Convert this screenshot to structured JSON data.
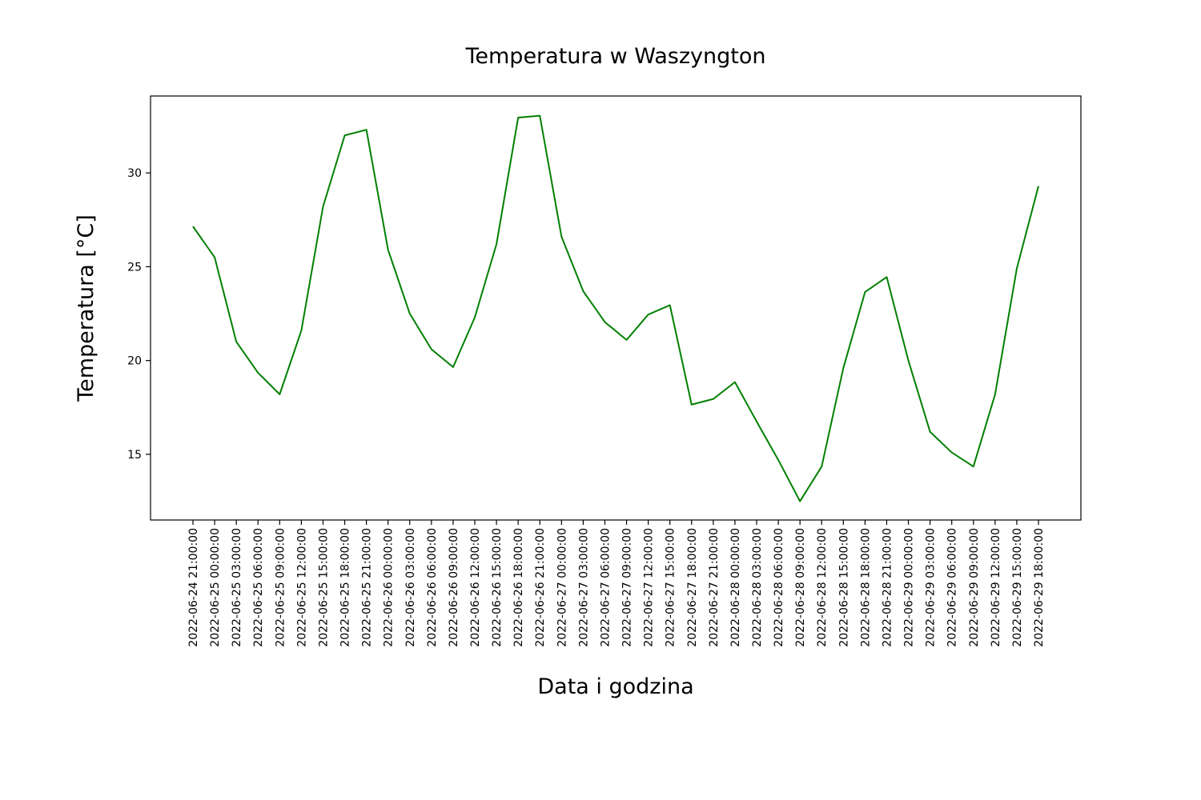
{
  "chart_data": {
    "type": "line",
    "title": "Temperatura w Waszyngton",
    "xlabel": "Data i godzina",
    "ylabel": "Temperatura [°C]",
    "x": [
      "2022-06-24 21:00:00",
      "2022-06-25 00:00:00",
      "2022-06-25 03:00:00",
      "2022-06-25 06:00:00",
      "2022-06-25 09:00:00",
      "2022-06-25 12:00:00",
      "2022-06-25 15:00:00",
      "2022-06-25 18:00:00",
      "2022-06-25 21:00:00",
      "2022-06-26 00:00:00",
      "2022-06-26 03:00:00",
      "2022-06-26 06:00:00",
      "2022-06-26 09:00:00",
      "2022-06-26 12:00:00",
      "2022-06-26 15:00:00",
      "2022-06-26 18:00:00",
      "2022-06-26 21:00:00",
      "2022-06-27 00:00:00",
      "2022-06-27 03:00:00",
      "2022-06-27 06:00:00",
      "2022-06-27 09:00:00",
      "2022-06-27 12:00:00",
      "2022-06-27 15:00:00",
      "2022-06-27 18:00:00",
      "2022-06-27 21:00:00",
      "2022-06-28 00:00:00",
      "2022-06-28 03:00:00",
      "2022-06-28 06:00:00",
      "2022-06-28 09:00:00",
      "2022-06-28 12:00:00",
      "2022-06-28 15:00:00",
      "2022-06-28 18:00:00",
      "2022-06-28 21:00:00",
      "2022-06-29 00:00:00",
      "2022-06-29 03:00:00",
      "2022-06-29 06:00:00",
      "2022-06-29 09:00:00",
      "2022-06-29 12:00:00",
      "2022-06-29 15:00:00",
      "2022-06-29 18:00:00"
    ],
    "series": [
      {
        "color": "#008000",
        "values": [
          27.15,
          25.5,
          21.0,
          19.35,
          18.2,
          21.6,
          28.2,
          32.0,
          32.3,
          25.9,
          22.5,
          20.6,
          19.65,
          22.3,
          26.2,
          32.95,
          33.05,
          26.6,
          23.7,
          22.05,
          21.1,
          22.45,
          22.95,
          17.65,
          17.95,
          18.85,
          16.75,
          14.7,
          12.5,
          14.35,
          19.6,
          23.65,
          24.45,
          20.0,
          16.2,
          15.1,
          14.35,
          18.2,
          24.9,
          29.3
        ]
      }
    ],
    "yticks": [
      15,
      20,
      25,
      30
    ],
    "ylim": [
      11.5,
      34.1
    ],
    "grid": false
  }
}
